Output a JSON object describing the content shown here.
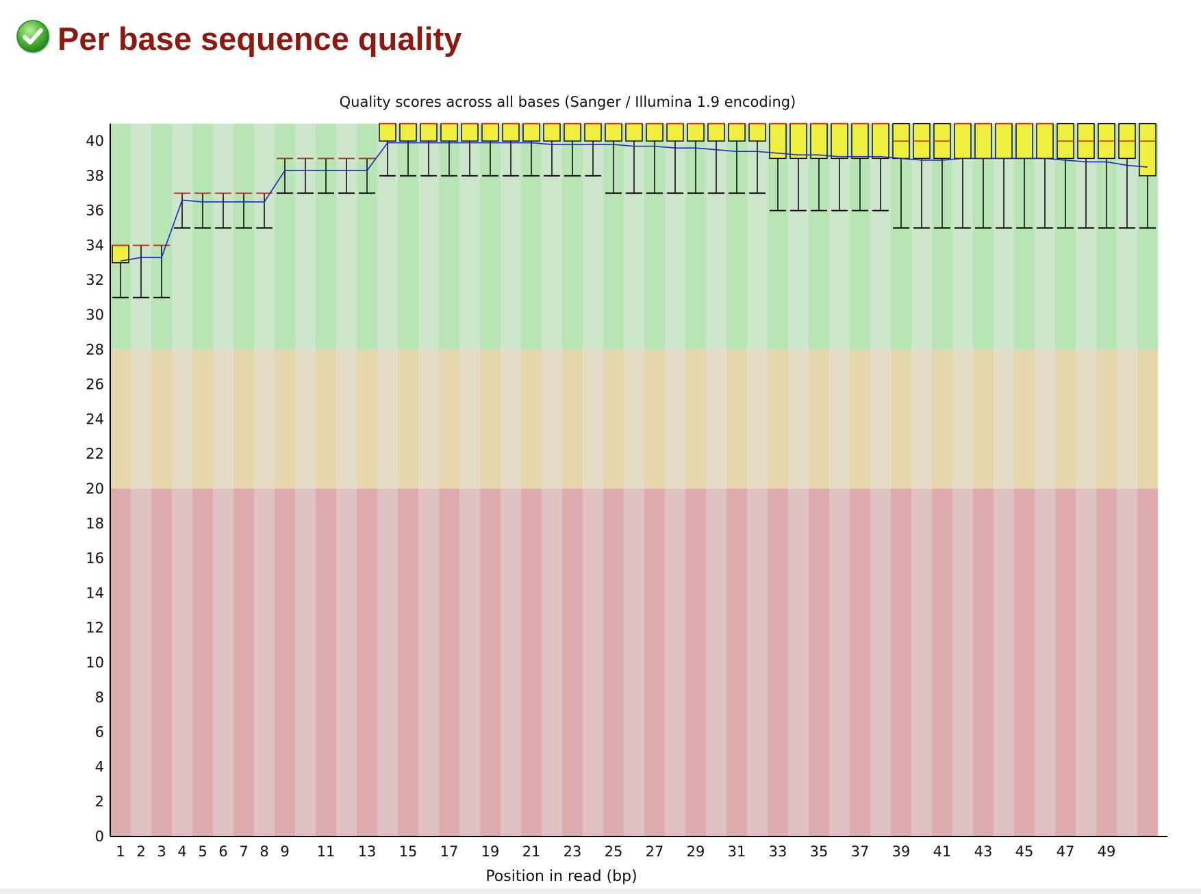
{
  "page": {
    "title": "Per base sequence quality",
    "status": "pass"
  },
  "icons": {
    "status": "check-circle-icon"
  },
  "colors": {
    "title": "#8b1a10",
    "good_dark": "#b9e4b5",
    "good_light": "#cde6cb",
    "warn_dark": "#e6d6ac",
    "warn_light": "#e5dcc5",
    "bad_dark": "#ddabac",
    "bad_light": "#e0c2c4",
    "box_fill": "#efef40",
    "median": "#d42a1b",
    "mean": "#1a27d0"
  },
  "chart_data": {
    "type": "boxplot",
    "title": "Quality scores across all bases (Sanger / Illumina 1.9 encoding)",
    "xlabel": "Position in read (bp)",
    "ylabel": "",
    "ylim": [
      0,
      41
    ],
    "yticks": [
      0,
      2,
      4,
      6,
      8,
      10,
      12,
      14,
      16,
      18,
      20,
      22,
      24,
      26,
      28,
      30,
      32,
      34,
      36,
      38,
      40
    ],
    "xtick_labels": [
      {
        "pos": 1,
        "label": "1"
      },
      {
        "pos": 2,
        "label": "2"
      },
      {
        "pos": 3,
        "label": "3"
      },
      {
        "pos": 4,
        "label": "4"
      },
      {
        "pos": 5,
        "label": "5"
      },
      {
        "pos": 6,
        "label": "6"
      },
      {
        "pos": 7,
        "label": "7"
      },
      {
        "pos": 8,
        "label": "8"
      },
      {
        "pos": 9,
        "label": "9"
      },
      {
        "pos": 11,
        "label": "11"
      },
      {
        "pos": 13,
        "label": "13"
      },
      {
        "pos": 15,
        "label": "15"
      },
      {
        "pos": 17,
        "label": "17"
      },
      {
        "pos": 19,
        "label": "19"
      },
      {
        "pos": 21,
        "label": "21"
      },
      {
        "pos": 23,
        "label": "23"
      },
      {
        "pos": 25,
        "label": "25"
      },
      {
        "pos": 27,
        "label": "27"
      },
      {
        "pos": 29,
        "label": "29"
      },
      {
        "pos": 31,
        "label": "31"
      },
      {
        "pos": 33,
        "label": "33"
      },
      {
        "pos": 35,
        "label": "35"
      },
      {
        "pos": 37,
        "label": "37"
      },
      {
        "pos": 39,
        "label": "39"
      },
      {
        "pos": 41,
        "label": "41"
      },
      {
        "pos": 43,
        "label": "43"
      },
      {
        "pos": 45,
        "label": "45"
      },
      {
        "pos": 47,
        "label": "47"
      },
      {
        "pos": 49,
        "label": "49"
      }
    ],
    "zones": [
      {
        "name": "good",
        "from": 28,
        "to": 41
      },
      {
        "name": "warning",
        "from": 20,
        "to": 28
      },
      {
        "name": "bad",
        "from": 0,
        "to": 20
      }
    ],
    "positions": [
      1,
      2,
      3,
      4,
      5,
      6,
      7,
      8,
      9,
      10,
      11,
      12,
      13,
      14,
      15,
      16,
      17,
      18,
      19,
      20,
      21,
      22,
      23,
      24,
      25,
      26,
      27,
      28,
      29,
      30,
      31,
      32,
      33,
      34,
      35,
      36,
      37,
      38,
      39,
      40,
      41,
      42,
      43,
      44,
      45,
      46,
      47,
      48,
      49,
      50,
      51
    ],
    "q1": [
      33,
      34,
      34,
      37,
      37,
      37,
      37,
      37,
      39,
      39,
      39,
      39,
      39,
      40,
      40,
      40,
      40,
      40,
      40,
      40,
      40,
      40,
      40,
      40,
      40,
      40,
      40,
      40,
      40,
      40,
      40,
      40,
      39,
      39,
      39,
      39,
      39,
      39,
      39,
      39,
      39,
      39,
      39,
      39,
      39,
      39,
      39,
      39,
      39,
      39,
      38
    ],
    "median": [
      34,
      34,
      34,
      37,
      37,
      37,
      37,
      37,
      39,
      39,
      39,
      39,
      39,
      41,
      41,
      41,
      41,
      41,
      41,
      41,
      41,
      41,
      41,
      41,
      41,
      41,
      41,
      41,
      41,
      41,
      41,
      41,
      41,
      41,
      41,
      41,
      41,
      41,
      40,
      40,
      40,
      41,
      41,
      41,
      41,
      41,
      40,
      40,
      40,
      40,
      40
    ],
    "q3": [
      34,
      34,
      34,
      37,
      37,
      37,
      37,
      37,
      39,
      39,
      39,
      39,
      39,
      41,
      41,
      41,
      41,
      41,
      41,
      41,
      41,
      41,
      41,
      41,
      41,
      41,
      41,
      41,
      41,
      41,
      41,
      41,
      41,
      41,
      41,
      41,
      41,
      41,
      41,
      41,
      41,
      41,
      41,
      41,
      41,
      41,
      41,
      41,
      41,
      41,
      41
    ],
    "whisker_low": [
      31,
      31,
      31,
      35,
      35,
      35,
      35,
      35,
      37,
      37,
      37,
      37,
      37,
      38,
      38,
      38,
      38,
      38,
      38,
      38,
      38,
      38,
      38,
      38,
      37,
      37,
      37,
      37,
      37,
      37,
      37,
      37,
      36,
      36,
      36,
      36,
      36,
      36,
      35,
      35,
      35,
      35,
      35,
      35,
      35,
      35,
      35,
      35,
      35,
      35,
      35
    ],
    "whisker_high": [
      34,
      34,
      34,
      37,
      37,
      37,
      37,
      37,
      39,
      39,
      39,
      39,
      39,
      41,
      41,
      41,
      41,
      41,
      41,
      41,
      41,
      41,
      41,
      41,
      41,
      41,
      41,
      41,
      41,
      41,
      41,
      41,
      41,
      41,
      41,
      41,
      41,
      41,
      41,
      41,
      41,
      41,
      41,
      41,
      41,
      41,
      41,
      41,
      41,
      41,
      41
    ],
    "mean": [
      33.1,
      33.3,
      33.3,
      36.6,
      36.5,
      36.5,
      36.5,
      36.5,
      38.3,
      38.3,
      38.3,
      38.3,
      38.3,
      39.9,
      39.9,
      39.9,
      39.9,
      39.9,
      39.9,
      39.9,
      39.9,
      39.8,
      39.8,
      39.8,
      39.8,
      39.7,
      39.7,
      39.6,
      39.6,
      39.5,
      39.4,
      39.4,
      39.3,
      39.2,
      39.2,
      39.1,
      39.1,
      39.1,
      39.0,
      38.9,
      38.9,
      39.0,
      39.0,
      39.0,
      39.0,
      39.0,
      38.9,
      38.8,
      38.8,
      38.6,
      38.5
    ]
  }
}
